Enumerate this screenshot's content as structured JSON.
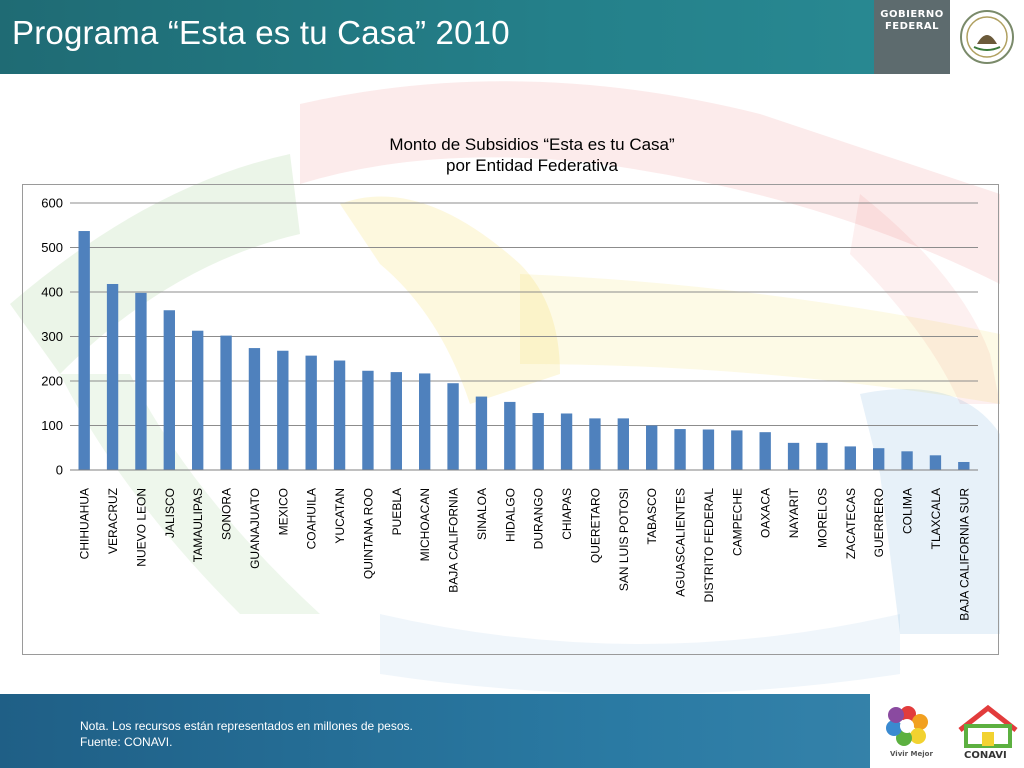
{
  "header": {
    "title": "Programa “Esta es tu Casa” 2010",
    "logo_line1": "GOBIERNO",
    "logo_line2": "FEDERAL"
  },
  "footer": {
    "note": "Nota. Los recursos están representados en millones de pesos.",
    "source": "Fuente: CONAVI.",
    "logo_vivir": "Vivir Mejor",
    "logo_conavi": "CONAVI"
  },
  "colors": {
    "bar": "#4f81bd",
    "header": "#24808a",
    "footer": "#2a7aa3"
  },
  "chart_data": {
    "type": "bar",
    "title": "Monto de Subsidios “Esta es tu Casa”",
    "subtitle": "por Entidad Federativa",
    "categories": [
      "CHIHUAHUA",
      "VERACRUZ",
      "NUEVO LEON",
      "JALISCO",
      "TAMAULIPAS",
      "SONORA",
      "GUANAJUATO",
      "MEXICO",
      "COAHUILA",
      "YUCATAN",
      "QUINTANA ROO",
      "PUEBLA",
      "MICHOACAN",
      "BAJA CALIFORNIA",
      "SINALOA",
      "HIDALGO",
      "DURANGO",
      "CHIAPAS",
      "QUERETARO",
      "SAN LUIS POTOSI",
      "TABASCO",
      "AGUASCALIENTES",
      "DISTRITO FEDERAL",
      "CAMPECHE",
      "OAXACA",
      "NAYARIT",
      "MORELOS",
      "ZACATECAS",
      "GUERRERO",
      "COLIMA",
      "TLAXCALA",
      "BAJA CALIFORNIA SUR"
    ],
    "values": [
      537,
      418,
      398,
      359,
      313,
      302,
      274,
      268,
      257,
      246,
      223,
      220,
      217,
      195,
      165,
      153,
      128,
      127,
      116,
      116,
      100,
      92,
      91,
      89,
      85,
      61,
      61,
      53,
      49,
      42,
      33,
      18
    ],
    "ylim": [
      0,
      600
    ],
    "yticks": [
      "0",
      "100",
      "200",
      "300",
      "400",
      "500",
      "600"
    ],
    "grid": true,
    "legend": "none"
  }
}
